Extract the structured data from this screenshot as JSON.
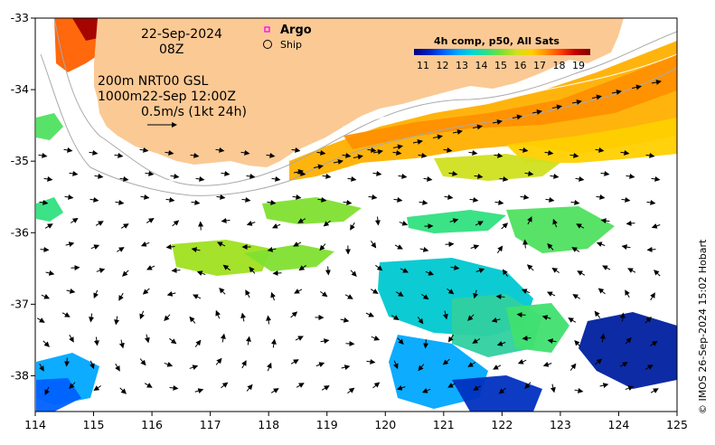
{
  "map": {
    "lon_range": [
      114,
      125
    ],
    "lat_range": [
      -38.5,
      -33
    ],
    "lon_ticks": [
      "114",
      "115",
      "116",
      "117",
      "118",
      "119",
      "120",
      "121",
      "122",
      "123",
      "124",
      "125"
    ],
    "lat_ticks": [
      "-33",
      "-34",
      "-35",
      "-36",
      "-37",
      "-38"
    ],
    "date": "22-Sep-2024",
    "hour": "08Z",
    "product_line1": "200m  NRT00 GSL",
    "product_line2": "1000m22-Sep 12:00Z",
    "scale_label": "0.5m/s (1kt 24h)",
    "legend": {
      "argo_label": "Argo",
      "ship_label": "Ship",
      "argo_color": "#ff00ff"
    },
    "colorbar": {
      "title": "4h comp, p50, All Sats",
      "ticks": [
        "11",
        "12",
        "13",
        "14",
        "15",
        "16",
        "17",
        "18",
        "19"
      ],
      "colors": [
        "#00007f",
        "#0020c0",
        "#0060ff",
        "#00a8ff",
        "#00d8d0",
        "#30e080",
        "#80e030",
        "#d0e020",
        "#ffd000",
        "#ff9000",
        "#ff4000",
        "#c00000",
        "#800000"
      ]
    },
    "land_color": "#fbc994",
    "credit": "© IMOS 26-Sep-2024 15:02 Hobart"
  }
}
